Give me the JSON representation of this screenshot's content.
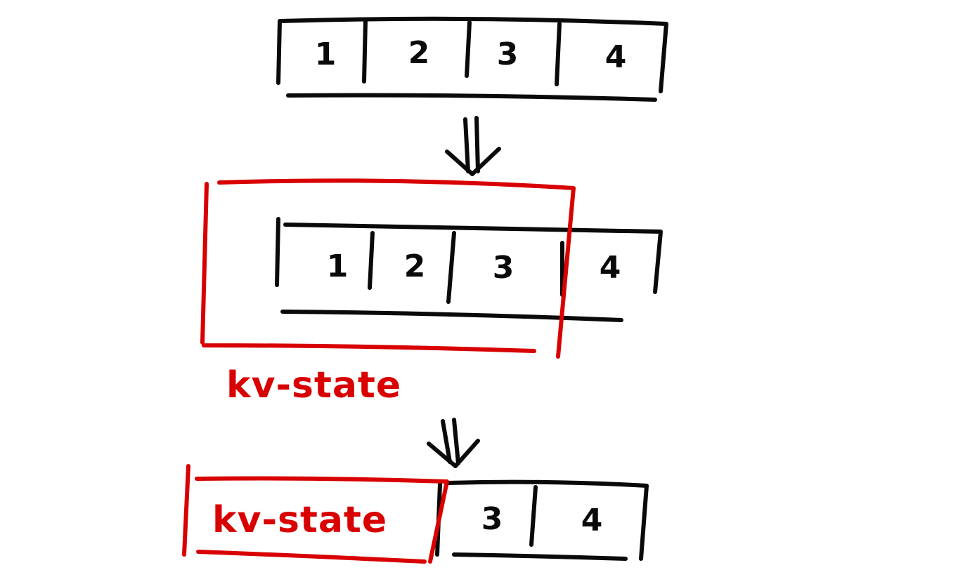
{
  "colors": {
    "ink": "#0a0a0a",
    "highlight": "#d80000"
  },
  "stage1": {
    "cells": [
      "1",
      "2",
      "3",
      "4"
    ]
  },
  "stage2": {
    "cells": [
      "1",
      "2",
      "3",
      "4"
    ],
    "highlight_label": "kv-state"
  },
  "stage3": {
    "state_label": "kv-state",
    "cells": [
      "3",
      "4"
    ]
  },
  "arrows": {
    "symbol": "double-down-arrow"
  }
}
